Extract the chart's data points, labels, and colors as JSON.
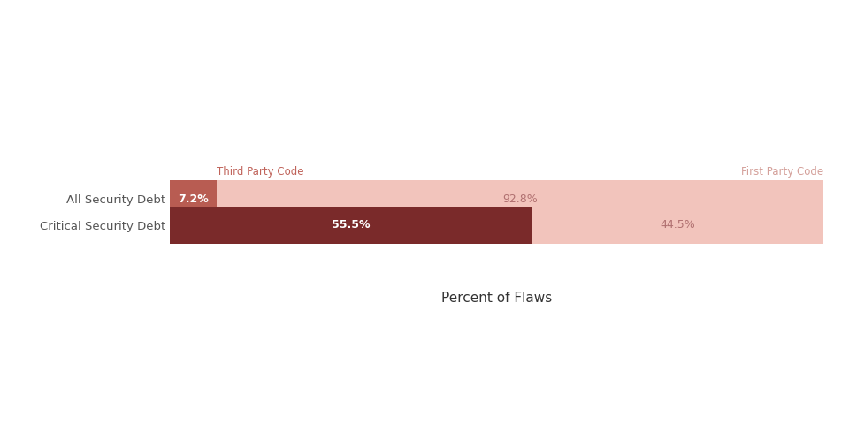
{
  "categories": [
    "All Security Debt",
    "Critical Security Debt"
  ],
  "third_party_values": [
    7.2,
    55.5
  ],
  "first_party_values": [
    92.8,
    44.5
  ],
  "third_party_color_row0": "#b85c52",
  "third_party_color_row1": "#7a2a2a",
  "first_party_color": "#f2c4bc",
  "label_third_party": "Third Party Code",
  "label_first_party": "First Party Code",
  "xlabel": "Percent of Flaws",
  "label_color_third": "#c0635a",
  "label_color_first": "#d4a09a",
  "text_color_white": "#ffffff",
  "text_color_light_red": "#b07070",
  "bar_height": 0.28,
  "bar_gap": 0.08,
  "background_color": "#ffffff"
}
